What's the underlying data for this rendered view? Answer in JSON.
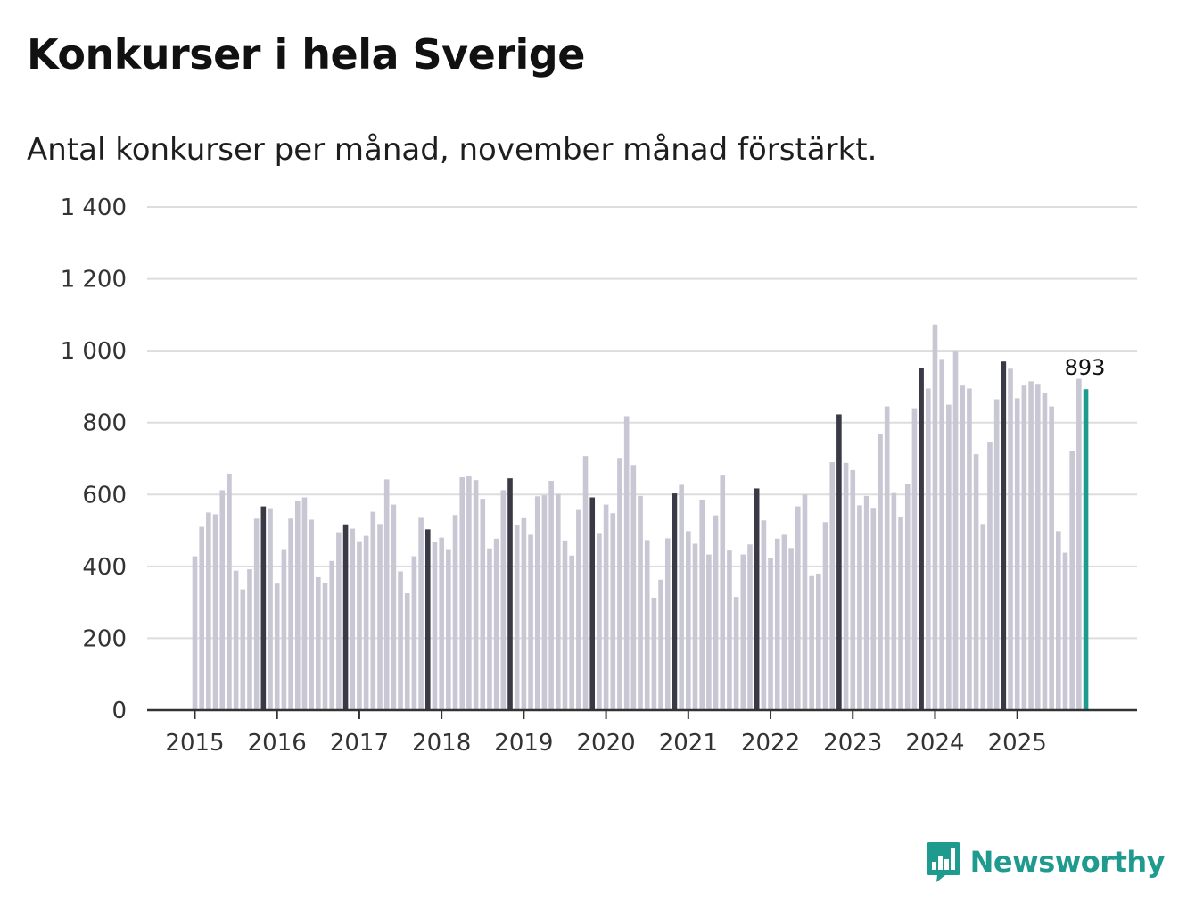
{
  "header": {
    "title": "Konkurser i hela Sverige",
    "subtitle": "Antal konkurser per månad, november månad förstärkt."
  },
  "brand": {
    "name": "Newsworthy",
    "icon": "newsworthy-logo-icon"
  },
  "colors": {
    "bar_default": "#c8c7d3",
    "bar_highlight": "#3a3946",
    "bar_latest": "#1f9a8e",
    "grid": "#dddddd",
    "axis": "#333333"
  },
  "chart_data": {
    "type": "bar",
    "title": "Konkurser i hela Sverige",
    "subtitle": "Antal konkurser per månad, november månad förstärkt.",
    "xlabel": "",
    "ylabel": "",
    "ylim": [
      0,
      1400
    ],
    "yticks": [
      0,
      200,
      400,
      600,
      800,
      1000,
      1200,
      1400
    ],
    "ytick_labels": [
      "0",
      "200",
      "400",
      "600",
      "800",
      "1 000",
      "1 200",
      "1 400"
    ],
    "xtick_labels": [
      "2015",
      "2016",
      "2017",
      "2018",
      "2019",
      "2020",
      "2021",
      "2022",
      "2023",
      "2024",
      "2025"
    ],
    "grid": true,
    "start": "2015-01",
    "highlight_month": "november",
    "latest_label": "893",
    "values": [
      428,
      510,
      550,
      545,
      612,
      658,
      388,
      336,
      392,
      533,
      567,
      562,
      352,
      448,
      533,
      583,
      592,
      530,
      370,
      355,
      415,
      495,
      517,
      505,
      470,
      485,
      552,
      518,
      642,
      572,
      386,
      325,
      428,
      535,
      503,
      468,
      480,
      448,
      543,
      648,
      652,
      640,
      588,
      450,
      477,
      612,
      645,
      516,
      534,
      488,
      595,
      598,
      638,
      602,
      472,
      430,
      557,
      707,
      592,
      493,
      572,
      548,
      702,
      818,
      682,
      596,
      473,
      313,
      363,
      478,
      603,
      627,
      498,
      463,
      586,
      433,
      542,
      655,
      444,
      315,
      433,
      461,
      617,
      528,
      423,
      477,
      488,
      451,
      567,
      600,
      373,
      380,
      523,
      690,
      823,
      688,
      668,
      570,
      596,
      563,
      767,
      845,
      604,
      537,
      628,
      840,
      953,
      895,
      1073,
      977,
      850,
      1000,
      903,
      895,
      712,
      518,
      747,
      865,
      970,
      950,
      868,
      903,
      915,
      908,
      882,
      845,
      498,
      438,
      722,
      922,
      893
    ]
  }
}
